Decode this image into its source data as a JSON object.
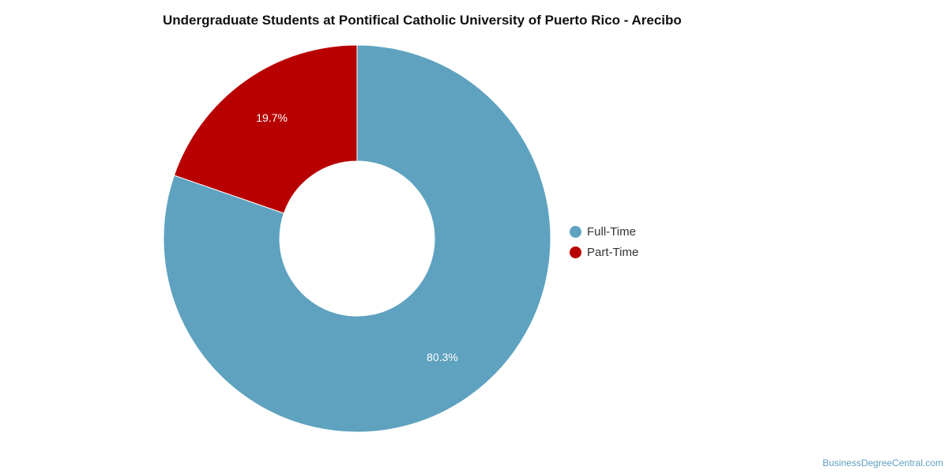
{
  "chart_data": {
    "type": "pie",
    "title": "Undergraduate Students at Pontifical Catholic University of Puerto Rico - Arecibo",
    "categories": [
      "Full-Time",
      "Part-Time"
    ],
    "values": [
      80.3,
      19.7
    ],
    "data_labels": [
      "80.3%",
      "19.7%"
    ],
    "colors": [
      "#5ea2bf",
      "#b80000"
    ],
    "donut": true,
    "legend_position": "right"
  },
  "legend": {
    "items": [
      {
        "label": "Full-Time",
        "color": "#5ea2bf"
      },
      {
        "label": "Part-Time",
        "color": "#b80000"
      }
    ]
  },
  "footer": {
    "watermark": "BusinessDegreeCentral.com"
  }
}
